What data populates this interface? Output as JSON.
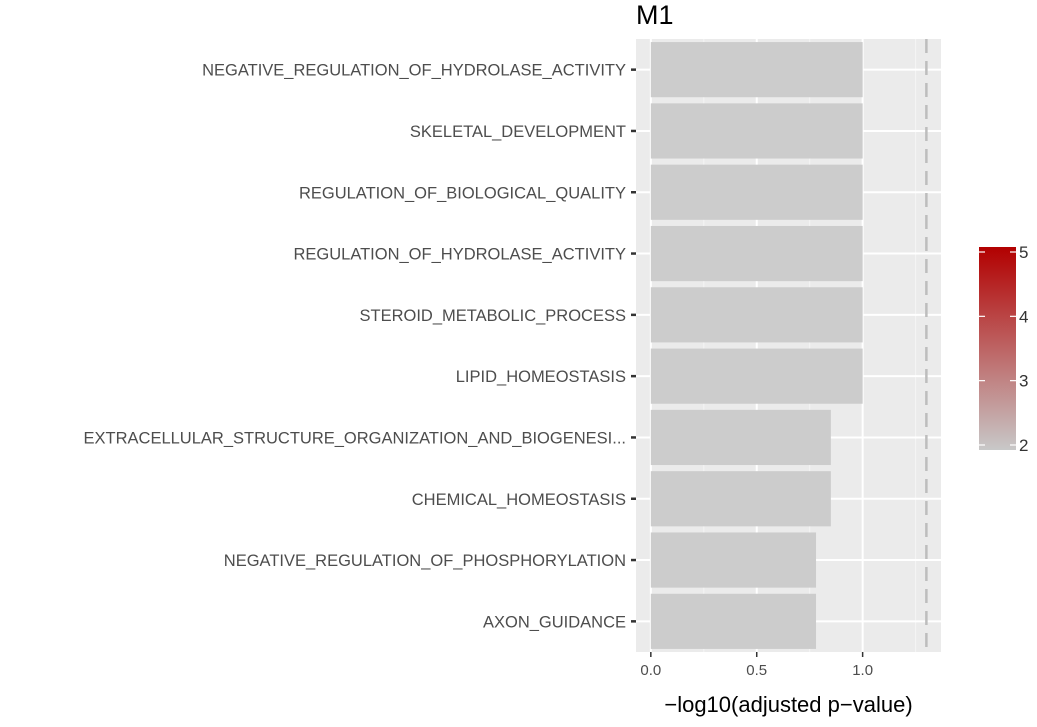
{
  "chart_data": {
    "type": "bar",
    "orientation": "horizontal",
    "title": "M1",
    "xlabel": "−log10(adjusted p−value)",
    "ylabel": "",
    "xlim": [
      -0.07,
      1.37
    ],
    "x_ticks": [
      {
        "value": 0.0,
        "label": "0.0"
      },
      {
        "value": 0.5,
        "label": "0.5"
      },
      {
        "value": 1.0,
        "label": "1.0"
      }
    ],
    "reference_line": {
      "value": 1.301,
      "style": "dashed",
      "color": "#bdbdbd"
    },
    "categories": [
      "NEGATIVE_REGULATION_OF_HYDROLASE_ACTIVITY",
      "SKELETAL_DEVELOPMENT",
      "REGULATION_OF_BIOLOGICAL_QUALITY",
      "REGULATION_OF_HYDROLASE_ACTIVITY",
      "STEROID_METABOLIC_PROCESS",
      "LIPID_HOMEOSTASIS",
      "EXTRACELLULAR_STRUCTURE_ORGANIZATION_AND_BIOGENESI...",
      "CHEMICAL_HOMEOSTASIS",
      "NEGATIVE_REGULATION_OF_PHOSPHORYLATION",
      "AXON_GUIDANCE"
    ],
    "values": [
      1.0,
      1.0,
      1.0,
      1.0,
      1.0,
      1.0,
      0.85,
      0.85,
      0.78,
      0.78
    ],
    "bar_color": "#cccccc",
    "panel_background": "#ebebeb",
    "grid": true,
    "legend": {
      "placement": "right",
      "type": "colorbar",
      "range": [
        2,
        5
      ],
      "ticks": [
        "2",
        "3",
        "4",
        "5"
      ],
      "color_low": "#c8c8c8",
      "color_high": "#b20000"
    }
  }
}
